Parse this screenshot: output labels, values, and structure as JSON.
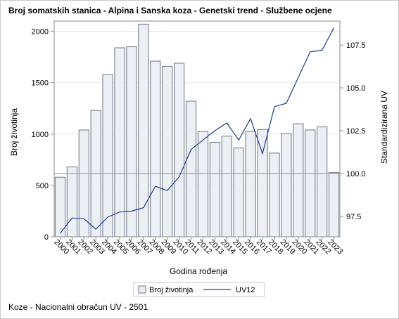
{
  "chart_data": {
    "type": "bar",
    "title": "Broj somatskih stanica - Alpina i Sanska koza - Genetski trend - Službene ocjene",
    "xlabel": "Godina rođenja",
    "ylabel": "Broj životinja",
    "y2label": "Standardizirana UV",
    "categories": [
      "2000",
      "2001",
      "2002",
      "2003",
      "2004",
      "2005",
      "2006",
      "2007",
      "2008",
      "2009",
      "2010",
      "2011",
      "2012",
      "2013",
      "2014",
      "2015",
      "2016",
      "2017",
      "2018",
      "2019",
      "2020",
      "2021",
      "2022",
      "2023"
    ],
    "ylim": [
      0,
      2100
    ],
    "y_ticks": [
      0,
      500,
      1000,
      1500,
      2000
    ],
    "y2lim": [
      96.3,
      108.9
    ],
    "y2_ticks": [
      "97.5",
      "100.0",
      "102.5",
      "105.0",
      "107.5"
    ],
    "reference_line_y2": 100.0,
    "legend_position": "bottom",
    "grid": true,
    "series": [
      {
        "name": "Broj životinja",
        "type": "bar",
        "values": [
          580,
          680,
          1040,
          1230,
          1580,
          1840,
          1850,
          2070,
          1710,
          1660,
          1690,
          1320,
          1025,
          920,
          980,
          865,
          1025,
          1045,
          815,
          1005,
          1100,
          1040,
          1070,
          625
        ]
      },
      {
        "name": "UV12",
        "type": "line",
        "axis": "y2",
        "values": [
          96.5,
          97.4,
          97.35,
          96.75,
          97.45,
          97.75,
          97.8,
          98.0,
          99.25,
          99.0,
          99.8,
          101.4,
          101.95,
          102.5,
          102.95,
          101.95,
          103.2,
          101.15,
          103.9,
          104.1,
          105.6,
          107.1,
          107.2,
          108.5
        ]
      }
    ]
  },
  "footnote": "Koze - Nacionalni obračun UV - 2501",
  "colors": {
    "bar_fill": "#eceff4",
    "bar_stroke": "#6e7684",
    "line": "#1a3d8f",
    "grid": "#e6e6e6",
    "axis": "#8a8a8a",
    "ref_line": "#8f8f8f"
  }
}
